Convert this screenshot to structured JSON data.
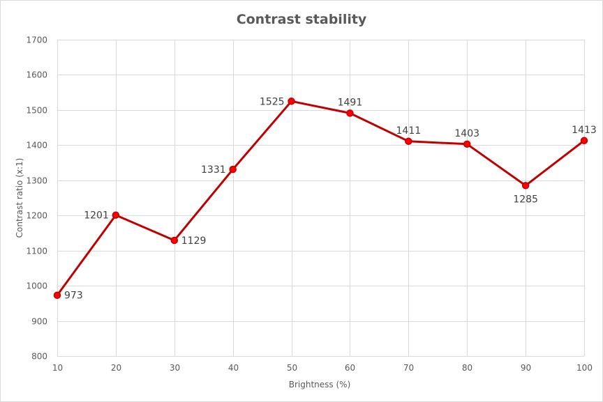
{
  "chart_data": {
    "type": "line",
    "title": "Contrast stability",
    "xlabel": "Brightness (%)",
    "ylabel": "Contrast ratio (x:1)",
    "x": [
      10,
      20,
      30,
      40,
      50,
      60,
      70,
      80,
      90,
      100
    ],
    "series": [
      {
        "name": "Contrast ratio",
        "values": [
          973,
          1201,
          1129,
          1331,
          1525,
          1491,
          1411,
          1403,
          1285,
          1413
        ],
        "data_labels": [
          "973",
          "1201",
          "1129",
          "1331",
          "1525",
          "1491",
          "1411",
          "1403",
          "1285",
          "1413"
        ],
        "label_placement": [
          "right",
          "left",
          "right",
          "left",
          "left",
          "above",
          "above",
          "above",
          "below",
          "above"
        ]
      }
    ],
    "xlim": [
      10,
      100
    ],
    "ylim": [
      800,
      1700
    ],
    "yticks": [
      800,
      900,
      1000,
      1100,
      1200,
      1300,
      1400,
      1500,
      1600,
      1700
    ],
    "xticks": [
      10,
      20,
      30,
      40,
      50,
      60,
      70,
      80,
      90,
      100
    ],
    "grid": true,
    "colors": {
      "line": "#c00000",
      "marker": "#ff0000",
      "grid": "#d9d9d9",
      "text": "#595959"
    }
  }
}
